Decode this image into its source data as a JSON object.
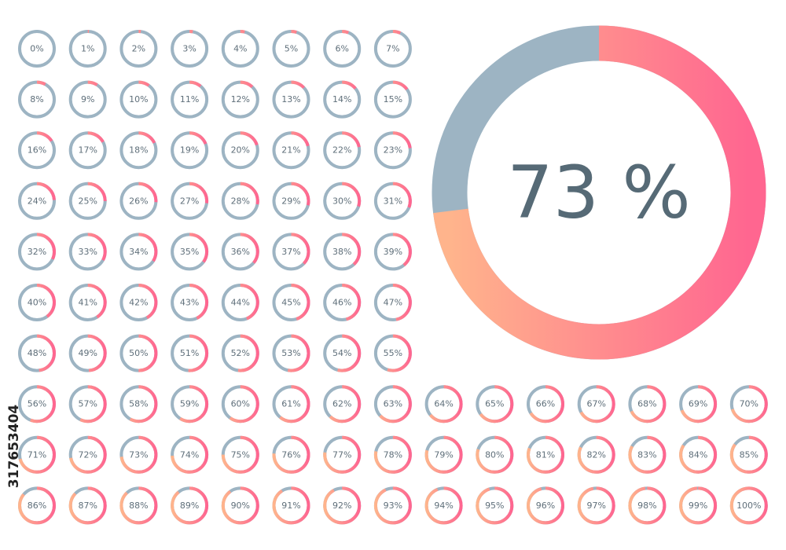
{
  "rings": {
    "values": [
      0,
      1,
      2,
      3,
      4,
      5,
      6,
      7,
      8,
      9,
      10,
      11,
      12,
      13,
      14,
      15,
      16,
      17,
      18,
      19,
      20,
      21,
      22,
      23,
      24,
      25,
      26,
      27,
      28,
      29,
      30,
      31,
      32,
      33,
      34,
      35,
      36,
      37,
      38,
      39,
      40,
      41,
      42,
      43,
      44,
      45,
      46,
      47,
      48,
      49,
      50,
      51,
      52,
      53,
      54,
      55,
      56,
      57,
      58,
      59,
      60,
      61,
      62,
      63,
      64,
      65,
      66,
      67,
      68,
      69,
      70,
      71,
      72,
      73,
      74,
      75,
      76,
      77,
      78,
      79,
      80,
      81,
      82,
      83,
      84,
      85,
      86,
      87,
      88,
      89,
      90,
      91,
      92,
      93,
      94,
      95,
      96,
      97,
      98,
      99,
      100
    ],
    "value_labels": [
      "0%",
      "1%",
      "2%",
      "3%",
      "4%",
      "5%",
      "6%",
      "7%",
      "8%",
      "9%",
      "10%",
      "11%",
      "12%",
      "13%",
      "14%",
      "15%",
      "16%",
      "17%",
      "18%",
      "19%",
      "20%",
      "21%",
      "22%",
      "23%",
      "24%",
      "25%",
      "26%",
      "27%",
      "28%",
      "29%",
      "30%",
      "31%",
      "32%",
      "33%",
      "34%",
      "35%",
      "36%",
      "37%",
      "38%",
      "39%",
      "40%",
      "41%",
      "42%",
      "43%",
      "44%",
      "45%",
      "46%",
      "47%",
      "48%",
      "49%",
      "50%",
      "51%",
      "52%",
      "53%",
      "54%",
      "55%",
      "56%",
      "57%",
      "58%",
      "59%",
      "60%",
      "61%",
      "62%",
      "63%",
      "64%",
      "65%",
      "66%",
      "67%",
      "68%",
      "69%",
      "70%",
      "71%",
      "72%",
      "73%",
      "74%",
      "75%",
      "76%",
      "77%",
      "78%",
      "79%",
      "80%",
      "81%",
      "82%",
      "83%",
      "84%",
      "85%",
      "86%",
      "87%",
      "88%",
      "89%",
      "90%",
      "91%",
      "92%",
      "93%",
      "94%",
      "95%",
      "96%",
      "97%",
      "98%",
      "99%",
      "100%"
    ]
  },
  "featured": {
    "value": 73,
    "label": "73 %"
  },
  "side_id": "317653404"
}
